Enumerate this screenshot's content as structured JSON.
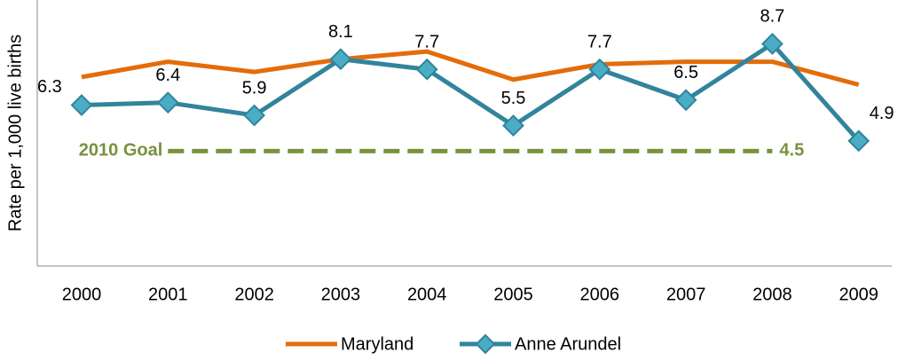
{
  "chart_data": {
    "type": "line",
    "y_label": "Rate per 1,000 live births",
    "categories": [
      "2000",
      "2001",
      "2002",
      "2003",
      "2004",
      "2005",
      "2006",
      "2007",
      "2008",
      "2009"
    ],
    "series": [
      {
        "name": "Maryland",
        "color": "#e46c0a",
        "values": [
          7.4,
          8.0,
          7.6,
          8.1,
          8.4,
          7.3,
          7.9,
          8.0,
          8.0,
          7.1
        ]
      },
      {
        "name": "Anne Arundel",
        "color": "#31849b",
        "marker_color": "#4bacc6",
        "values": [
          6.3,
          6.4,
          5.9,
          8.1,
          7.7,
          5.5,
          7.7,
          6.5,
          8.7,
          4.9
        ],
        "show_labels": true
      }
    ],
    "goal": {
      "label": "2010 Goal",
      "value": 4.5,
      "color": "#77933c"
    },
    "ylim": [
      0,
      10
    ]
  }
}
